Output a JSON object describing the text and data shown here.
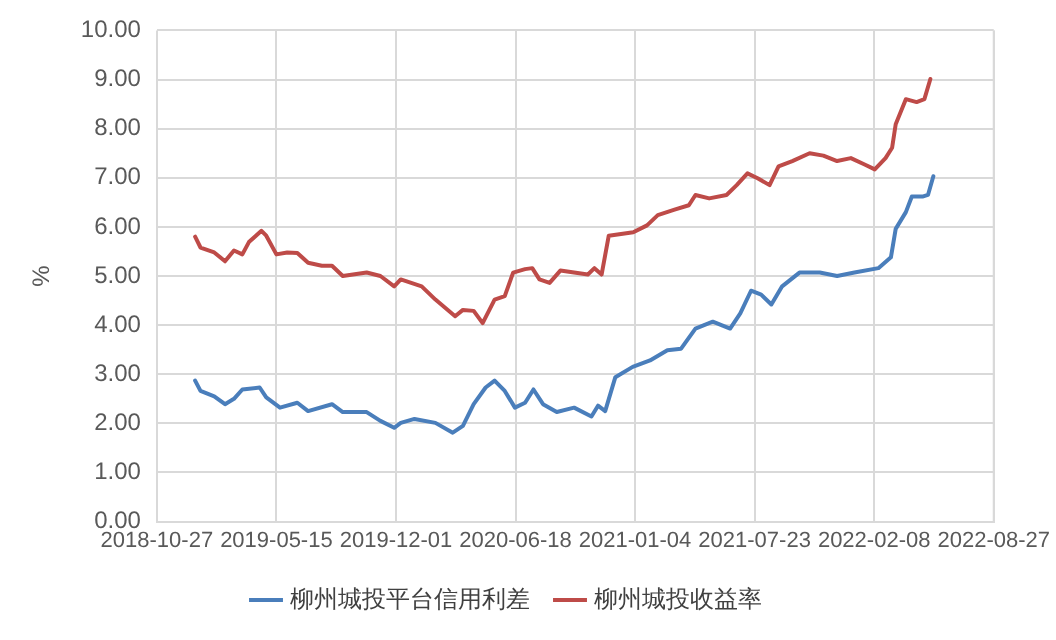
{
  "chart_data": {
    "type": "line",
    "ylabel": "%",
    "xlim": [
      "2018-10-27",
      "2022-08-27"
    ],
    "xticks": [
      "2018-10-27",
      "2019-05-15",
      "2019-12-01",
      "2020-06-18",
      "2021-01-04",
      "2021-07-23",
      "2022-02-08",
      "2022-08-27"
    ],
    "ylim": [
      0,
      10
    ],
    "yticks": [
      {
        "value": 0,
        "label": "0.00"
      },
      {
        "value": 1,
        "label": "1.00"
      },
      {
        "value": 2,
        "label": "2.00"
      },
      {
        "value": 3,
        "label": "3.00"
      },
      {
        "value": 4,
        "label": "4.00"
      },
      {
        "value": 5,
        "label": "5.00"
      },
      {
        "value": 6,
        "label": "6.00"
      },
      {
        "value": 7,
        "label": "7.00"
      },
      {
        "value": 8,
        "label": "8.00"
      },
      {
        "value": 9,
        "label": "9.00"
      },
      {
        "value": 10,
        "label": "10.00"
      }
    ],
    "grid": true,
    "legend": "bottom",
    "marker": "none",
    "line_style": "solid",
    "series": [
      {
        "name": "柳州城投平台信用利差",
        "color": "#4a7ebb",
        "x": [
          "2018-12-30",
          "2019-01-08",
          "2019-01-31",
          "2019-02-18",
          "2019-03-05",
          "2019-03-19",
          "2019-04-17",
          "2019-04-28",
          "2019-05-21",
          "2019-06-19",
          "2019-07-07",
          "2019-08-16",
          "2019-09-03",
          "2019-10-13",
          "2019-11-05",
          "2019-11-28",
          "2019-12-09",
          "2020-01-01",
          "2020-02-05",
          "2020-03-05",
          "2020-03-22",
          "2020-04-09",
          "2020-04-29",
          "2020-05-14",
          "2020-05-31",
          "2020-06-17",
          "2020-07-04",
          "2020-07-18",
          "2020-08-03",
          "2020-08-26",
          "2020-09-24",
          "2020-10-23",
          "2020-11-03",
          "2020-11-15",
          "2020-12-02",
          "2020-12-31",
          "2021-01-29",
          "2021-02-27",
          "2021-03-22",
          "2021-04-15",
          "2021-05-14",
          "2021-06-12",
          "2021-06-29",
          "2021-07-17",
          "2021-08-03",
          "2021-08-20",
          "2021-09-07",
          "2021-10-06",
          "2021-11-09",
          "2021-12-08",
          "2022-01-06",
          "2022-02-15",
          "2022-03-08",
          "2022-03-16",
          "2022-04-02",
          "2022-04-12",
          "2022-05-01",
          "2022-05-09",
          "2022-05-18"
        ],
        "values": [
          2.87,
          2.66,
          2.55,
          2.39,
          2.5,
          2.69,
          2.73,
          2.53,
          2.32,
          2.42,
          2.25,
          2.39,
          2.23,
          2.23,
          2.05,
          1.91,
          2.01,
          2.09,
          2.01,
          1.81,
          1.95,
          2.39,
          2.73,
          2.87,
          2.66,
          2.32,
          2.42,
          2.69,
          2.39,
          2.23,
          2.32,
          2.14,
          2.36,
          2.25,
          2.94,
          3.15,
          3.28,
          3.49,
          3.52,
          3.93,
          4.07,
          3.93,
          4.24,
          4.7,
          4.62,
          4.42,
          4.79,
          5.07,
          5.07,
          5.0,
          5.07,
          5.16,
          5.38,
          5.96,
          6.3,
          6.62,
          6.62,
          6.65,
          7.03
        ]
      },
      {
        "name": "柳州城投收益率",
        "color": "#be4b48",
        "x": [
          "2018-12-30",
          "2019-01-08",
          "2019-01-31",
          "2019-02-18",
          "2019-03-05",
          "2019-03-19",
          "2019-03-30",
          "2019-04-20",
          "2019-04-28",
          "2019-05-15",
          "2019-06-02",
          "2019-06-19",
          "2019-07-07",
          "2019-07-30",
          "2019-08-16",
          "2019-09-03",
          "2019-10-13",
          "2019-11-05",
          "2019-11-28",
          "2019-12-09",
          "2020-01-13",
          "2020-02-05",
          "2020-03-09",
          "2020-03-22",
          "2020-04-09",
          "2020-04-24",
          "2020-05-14",
          "2020-05-31",
          "2020-06-14",
          "2020-07-04",
          "2020-07-16",
          "2020-07-28",
          "2020-08-14",
          "2020-09-01",
          "2020-10-17",
          "2020-10-28",
          "2020-11-09",
          "2020-11-21",
          "2021-01-01",
          "2021-01-24",
          "2021-02-11",
          "2021-03-11",
          "2021-04-04",
          "2021-04-15",
          "2021-05-08",
          "2021-06-06",
          "2021-06-23",
          "2021-07-11",
          "2021-07-28",
          "2021-08-17",
          "2021-09-01",
          "2021-09-24",
          "2021-10-23",
          "2021-11-15",
          "2021-12-08",
          "2021-12-31",
          "2022-01-23",
          "2022-02-09",
          "2022-02-27",
          "2022-03-10",
          "2022-03-16",
          "2022-04-02",
          "2022-04-20",
          "2022-05-03",
          "2022-05-13"
        ],
        "values": [
          5.8,
          5.58,
          5.48,
          5.3,
          5.52,
          5.44,
          5.69,
          5.92,
          5.82,
          5.44,
          5.48,
          5.47,
          5.27,
          5.21,
          5.21,
          5.0,
          5.07,
          5.0,
          4.79,
          4.93,
          4.79,
          4.52,
          4.18,
          4.31,
          4.29,
          4.04,
          4.52,
          4.59,
          5.07,
          5.14,
          5.16,
          4.93,
          4.86,
          5.11,
          5.03,
          5.16,
          5.03,
          5.82,
          5.89,
          6.03,
          6.24,
          6.35,
          6.44,
          6.65,
          6.58,
          6.65,
          6.85,
          7.09,
          6.99,
          6.85,
          7.23,
          7.34,
          7.5,
          7.45,
          7.34,
          7.4,
          7.27,
          7.17,
          7.4,
          7.61,
          8.09,
          8.6,
          8.54,
          8.6,
          9.01
        ]
      }
    ]
  }
}
